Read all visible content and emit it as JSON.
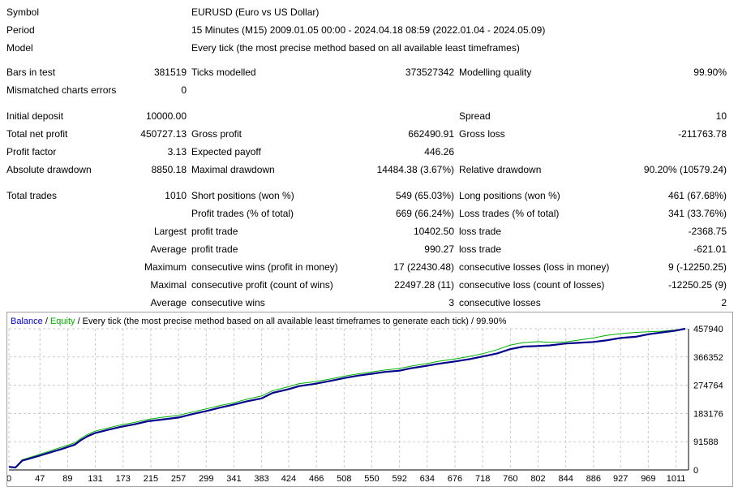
{
  "header": {
    "symbol_label": "Symbol",
    "symbol_value": "EURUSD (Euro vs US Dollar)",
    "period_label": "Period",
    "period_value": "15 Minutes (M15) 2009.01.05 00:00 - 2024.04.18 08:59 (2022.01.04 - 2024.05.09)",
    "model_label": "Model",
    "model_value": "Every tick (the most precise method based on all available least timeframes)"
  },
  "stats": {
    "bars_in_test_label": "Bars in test",
    "bars_in_test": "381519",
    "ticks_modelled_label": "Ticks modelled",
    "ticks_modelled": "373527342",
    "modelling_quality_label": "Modelling quality",
    "modelling_quality": "99.90%",
    "mismatched_label": "Mismatched charts errors",
    "mismatched": "0",
    "initial_deposit_label": "Initial deposit",
    "initial_deposit": "10000.00",
    "spread_label": "Spread",
    "spread": "10",
    "total_net_profit_label": "Total net profit",
    "total_net_profit": "450727.13",
    "gross_profit_label": "Gross profit",
    "gross_profit": "662490.91",
    "gross_loss_label": "Gross loss",
    "gross_loss": "-211763.78",
    "profit_factor_label": "Profit factor",
    "profit_factor": "3.13",
    "expected_payoff_label": "Expected payoff",
    "expected_payoff": "446.26",
    "absolute_drawdown_label": "Absolute drawdown",
    "absolute_drawdown": "8850.18",
    "maximal_drawdown_label": "Maximal drawdown",
    "maximal_drawdown": "14484.38 (3.67%)",
    "relative_drawdown_label": "Relative drawdown",
    "relative_drawdown": "90.20% (10579.24)",
    "total_trades_label": "Total trades",
    "total_trades": "1010",
    "short_positions_label": "Short positions (won %)",
    "short_positions": "549 (65.03%)",
    "long_positions_label": "Long positions (won %)",
    "long_positions": "461 (67.68%)",
    "profit_trades_label": "Profit trades (% of total)",
    "profit_trades": "669 (66.24%)",
    "loss_trades_label": "Loss trades (% of total)",
    "loss_trades": "341 (33.76%)",
    "largest_label": "Largest",
    "largest_profit_label": "profit trade",
    "largest_profit": "10402.50",
    "largest_loss_label": "loss trade",
    "largest_loss": "-2368.75",
    "average_label": "Average",
    "average_profit_label": "profit trade",
    "average_profit": "990.27",
    "average_loss_label": "loss trade",
    "average_loss": "-621.01",
    "maximum_label": "Maximum",
    "max_consec_wins_label": "consecutive wins (profit in money)",
    "max_consec_wins": "17 (22430.48)",
    "max_consec_losses_label": "consecutive losses (loss in money)",
    "max_consec_losses": "9 (-12250.25)",
    "maximal_label": "Maximal",
    "maximal_consec_profit_label": "consecutive profit (count of wins)",
    "maximal_consec_profit": "22497.28 (11)",
    "maximal_consec_loss_label": "consecutive loss (count of losses)",
    "maximal_consec_loss": "-12250.25 (9)",
    "average2_label": "Average",
    "avg_consec_wins_label": "consecutive wins",
    "avg_consec_wins": "3",
    "avg_consec_losses_label": "consecutive losses",
    "avg_consec_losses": "2"
  },
  "chart_data": {
    "type": "line",
    "legend": {
      "balance": "Balance",
      "separator1": " / ",
      "equity": "Equity",
      "rest": " / Every tick (the most precise method based on all available least timeframes to generate each tick) / 99.90%"
    },
    "colors": {
      "balance": "#00008b",
      "equity": "#00b000",
      "grid": "#c8c8c8"
    },
    "xticks": [
      "0",
      "47",
      "89",
      "131",
      "173",
      "215",
      "257",
      "299",
      "341",
      "383",
      "424",
      "466",
      "508",
      "550",
      "592",
      "634",
      "676",
      "718",
      "760",
      "802",
      "844",
      "886",
      "927",
      "969",
      "1011"
    ],
    "yticks": [
      "0",
      "91588",
      "183176",
      "274764",
      "366352",
      "457940"
    ],
    "xlim": [
      0,
      1030
    ],
    "ylim": [
      0,
      457940
    ],
    "series": [
      {
        "name": "Balance",
        "x": [
          0,
          10,
          20,
          40,
          60,
          80,
          100,
          110,
          120,
          131,
          150,
          170,
          190,
          210,
          230,
          257,
          280,
          299,
          320,
          341,
          360,
          383,
          400,
          424,
          440,
          466,
          490,
          508,
          530,
          550,
          570,
          592,
          610,
          634,
          650,
          676,
          700,
          718,
          740,
          760,
          780,
          802,
          820,
          844,
          860,
          886,
          905,
          927,
          950,
          969,
          990,
          1011,
          1025
        ],
        "values": [
          10000,
          8000,
          30000,
          42000,
          55000,
          68000,
          82000,
          98000,
          110000,
          120000,
          130000,
          140000,
          148000,
          158000,
          163000,
          170000,
          182000,
          191000,
          202000,
          212000,
          222000,
          232000,
          250000,
          262000,
          272000,
          280000,
          290000,
          298000,
          306000,
          312000,
          318000,
          322000,
          330000,
          338000,
          344000,
          352000,
          360000,
          368000,
          378000,
          392000,
          400000,
          402000,
          404000,
          410000,
          412000,
          415000,
          420000,
          428000,
          432000,
          440000,
          446000,
          452000,
          457940
        ]
      },
      {
        "name": "Equity",
        "x": [
          0,
          10,
          20,
          40,
          60,
          80,
          100,
          110,
          120,
          131,
          150,
          170,
          190,
          210,
          230,
          257,
          280,
          299,
          320,
          341,
          360,
          383,
          400,
          424,
          440,
          466,
          490,
          508,
          530,
          550,
          570,
          592,
          610,
          634,
          650,
          676,
          700,
          718,
          740,
          760,
          780,
          802,
          820,
          844,
          860,
          886,
          905,
          927,
          950,
          969,
          990,
          1011,
          1025
        ],
        "values": [
          10000,
          9000,
          33000,
          46000,
          60000,
          74000,
          88000,
          104000,
          116000,
          126000,
          136000,
          146000,
          154000,
          164000,
          170000,
          177000,
          189000,
          198000,
          209000,
          218000,
          229000,
          240000,
          257000,
          270000,
          280000,
          287000,
          296000,
          304000,
          312000,
          318000,
          324000,
          329000,
          337000,
          345000,
          352000,
          360000,
          369000,
          377000,
          390000,
          405000,
          413000,
          416000,
          414000,
          415000,
          420000,
          428000,
          436000,
          442000,
          446000,
          448000,
          450000,
          454000,
          458000
        ]
      }
    ]
  }
}
